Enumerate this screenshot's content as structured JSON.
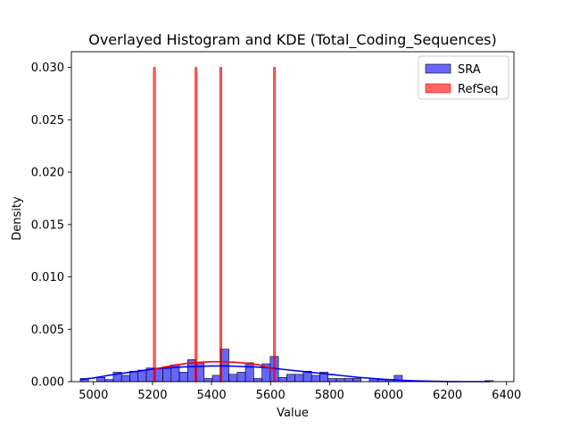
{
  "chart_data": {
    "type": "bar",
    "title": "Overlayed Histogram and KDE (Total_Coding_Sequences)",
    "xlabel": "Value",
    "ylabel": "Density",
    "xlim": [
      4925,
      6425
    ],
    "ylim": [
      0,
      0.0315
    ],
    "xticks": [
      5000,
      5200,
      5400,
      5600,
      5800,
      6000,
      6200,
      6400
    ],
    "yticks": [
      0.0,
      0.005,
      0.01,
      0.015,
      0.02,
      0.025,
      0.03
    ],
    "ytick_labels": [
      "0.000",
      "0.005",
      "0.010",
      "0.015",
      "0.020",
      "0.025",
      "0.030"
    ],
    "legend_position": "top-right",
    "series": [
      {
        "name": "SRA",
        "kind": "histogram",
        "color": "#0000ff",
        "bin_start": 4955,
        "bin_width": 28,
        "values": [
          0.0003,
          0.0,
          0.0004,
          0.0002,
          0.0009,
          0.0006,
          0.001,
          0.0011,
          0.0013,
          0.0013,
          0.0014,
          0.0016,
          0.0009,
          0.0021,
          0.0018,
          0.0003,
          0.0006,
          0.0031,
          0.0007,
          0.0009,
          0.0018,
          0.0003,
          0.0017,
          0.0024,
          0.0004,
          0.0007,
          0.0007,
          0.001,
          0.0006,
          0.0009,
          0.0003,
          0.0003,
          0.0003,
          0.0003,
          0.0,
          0.0003,
          0.0002,
          0.0002,
          0.0006,
          0.0001,
          0.0,
          0.0,
          0.0,
          0.0,
          0.0,
          0.0,
          0.0,
          0.0,
          0.0,
          0.0001
        ]
      },
      {
        "name": "RefSeq",
        "kind": "histogram",
        "color": "#ff0000",
        "bins": [
          {
            "start": 5203,
            "end": 5210,
            "value": 0.03
          },
          {
            "start": 5344,
            "end": 5351,
            "value": 0.03
          },
          {
            "start": 5428,
            "end": 5435,
            "value": 0.03
          },
          {
            "start": 5610,
            "end": 5617,
            "value": 0.03
          }
        ]
      }
    ],
    "kde": [
      {
        "series": "SRA",
        "color": "#0000ff",
        "x": [
          4955,
          5000,
          5050,
          5100,
          5150,
          5200,
          5250,
          5300,
          5350,
          5400,
          5450,
          5500,
          5550,
          5600,
          5650,
          5700,
          5750,
          5800,
          5850,
          5900,
          5950,
          6000,
          6050,
          6100,
          6150,
          6200,
          6250,
          6300,
          6345
        ],
        "y": [
          0.0002,
          0.00035,
          0.0006,
          0.0008,
          0.001,
          0.0012,
          0.0013,
          0.0014,
          0.00145,
          0.0015,
          0.0015,
          0.00145,
          0.0014,
          0.0013,
          0.00115,
          0.001,
          0.00085,
          0.0007,
          0.00055,
          0.0004,
          0.0003,
          0.0002,
          0.00012,
          7e-05,
          3e-05,
          1e-05,
          0.0,
          0.0,
          0.0
        ]
      },
      {
        "series": "RefSeq",
        "color": "#ff0000",
        "x": [
          5207,
          5240,
          5280,
          5320,
          5360,
          5400,
          5440,
          5480,
          5520,
          5560,
          5600,
          5614
        ],
        "y": [
          0.0012,
          0.0014,
          0.0016,
          0.00175,
          0.00185,
          0.0019,
          0.0019,
          0.00185,
          0.00175,
          0.0016,
          0.0013,
          0.00115
        ]
      }
    ]
  }
}
